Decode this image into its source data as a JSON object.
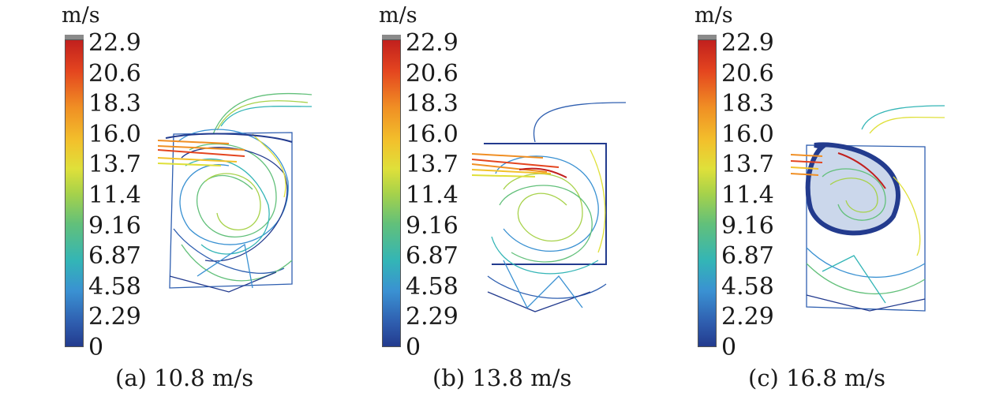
{
  "unit": "m/s",
  "colorbar_ticks": [
    "22.9",
    "20.6",
    "18.3",
    "16.0",
    "13.7",
    "11.4",
    "9.16",
    "6.87",
    "4.58",
    "2.29",
    "0"
  ],
  "panels": [
    {
      "caption": "(a) 10.8 m/s"
    },
    {
      "caption": "(b) 13.8 m/s"
    },
    {
      "caption": "(c) 16.8 m/s"
    }
  ],
  "colors": {
    "low": "#233b8e",
    "mid": "#62c07a",
    "high": "#c1201e"
  }
}
